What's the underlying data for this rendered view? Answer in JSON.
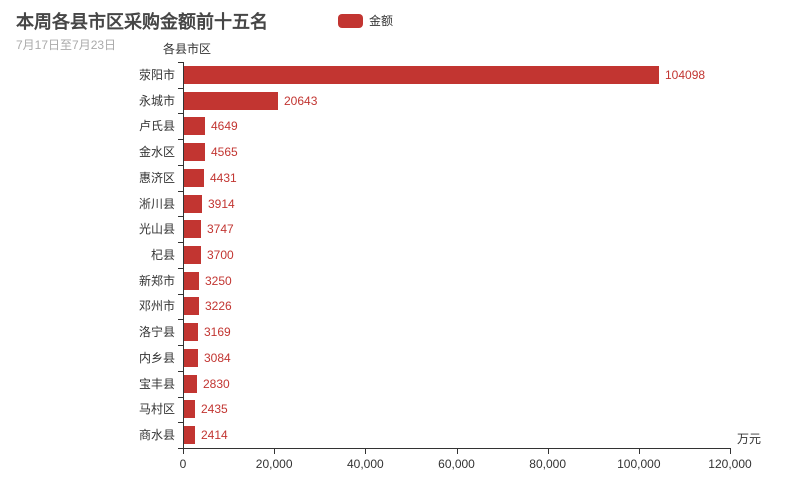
{
  "chart_data": {
    "type": "bar",
    "orientation": "horizontal",
    "title": "本周各县市区采购金额前十五名",
    "subtitle": "7月17日至7月23日",
    "legend": {
      "label": "金额",
      "position": "top"
    },
    "ylabel": "各县市区",
    "categories": [
      "荥阳市",
      "永城市",
      "卢氏县",
      "金水区",
      "惠济区",
      "淅川县",
      "光山县",
      "杞县",
      "新郑市",
      "邓州市",
      "洛宁县",
      "内乡县",
      "宝丰县",
      "马村区",
      "商水县"
    ],
    "series": [
      {
        "name": "金额",
        "values": [
          104098,
          20643,
          4649,
          4565,
          4431,
          3914,
          3747,
          3700,
          3250,
          3226,
          3169,
          3084,
          2830,
          2435,
          2414
        ]
      }
    ],
    "value_labels_shown": true,
    "xlim": [
      0,
      120000
    ],
    "x_ticks": [
      0,
      20000,
      40000,
      60000,
      80000,
      100000,
      120000
    ],
    "x_tick_labels": [
      "0",
      "20,000",
      "40,000",
      "60,000",
      "80,000",
      "100,000",
      "120,000"
    ],
    "x_unit": "万元",
    "grid": false,
    "colors": {
      "bar": "#c23531",
      "value_label": "#c23531",
      "axis": "#333333",
      "title": "#464646",
      "subtitle": "#aaaaaa"
    }
  }
}
